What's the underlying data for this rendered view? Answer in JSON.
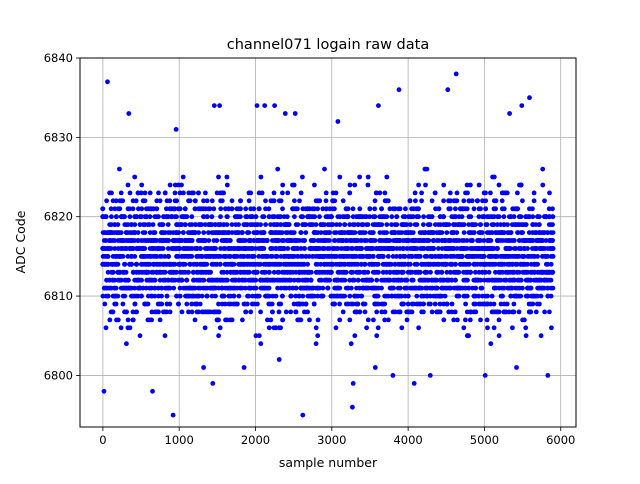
{
  "chart_data": {
    "type": "scatter",
    "title": "channel071 logain raw data",
    "xlabel": "sample number",
    "ylabel": "ADC Code",
    "xlim": [
      -300,
      6200
    ],
    "ylim": [
      6793.5,
      6840
    ],
    "xticks": [
      "0",
      "1000",
      "2000",
      "3000",
      "4000",
      "5000",
      "6000"
    ],
    "yticks": [
      "6800",
      "6810",
      "6820",
      "6830",
      "6840"
    ],
    "grid": true,
    "marker": "dot",
    "series": [
      {
        "color": "#0000ff",
        "points": [
          [
            15,
            6798
          ],
          [
            60,
            6837
          ],
          [
            340,
            6833
          ],
          [
            920,
            6795
          ],
          [
            960,
            6831
          ],
          [
            1460,
            6834
          ],
          [
            1530,
            6834
          ],
          [
            1440,
            6799
          ],
          [
            1850,
            6801
          ],
          [
            2020,
            6834
          ],
          [
            2120,
            6834
          ],
          [
            2250,
            6834
          ],
          [
            2390,
            6833
          ],
          [
            2520,
            6833
          ],
          [
            2620,
            6795
          ],
          [
            3080,
            6832
          ],
          [
            3270,
            6796
          ],
          [
            3280,
            6799
          ],
          [
            3610,
            6834
          ],
          [
            3880,
            6836
          ],
          [
            4080,
            6799
          ],
          [
            4520,
            6836
          ],
          [
            4630,
            6838
          ],
          [
            5330,
            6833
          ],
          [
            5490,
            6834
          ],
          [
            5590,
            6835
          ],
          [
            5830,
            6800
          ],
          [
            5010,
            6800
          ],
          [
            5420,
            6801
          ],
          [
            3800,
            6800
          ],
          [
            650,
            6798
          ],
          [
            2310,
            6802
          ],
          [
            1320,
            6801
          ],
          [
            4290,
            6800
          ],
          [
            3570,
            6801
          ]
        ],
        "band": {
          "x_range": [
            0,
            5900
          ],
          "center": 6815,
          "low": 6803,
          "high": 6827,
          "step": 1
        }
      }
    ]
  }
}
